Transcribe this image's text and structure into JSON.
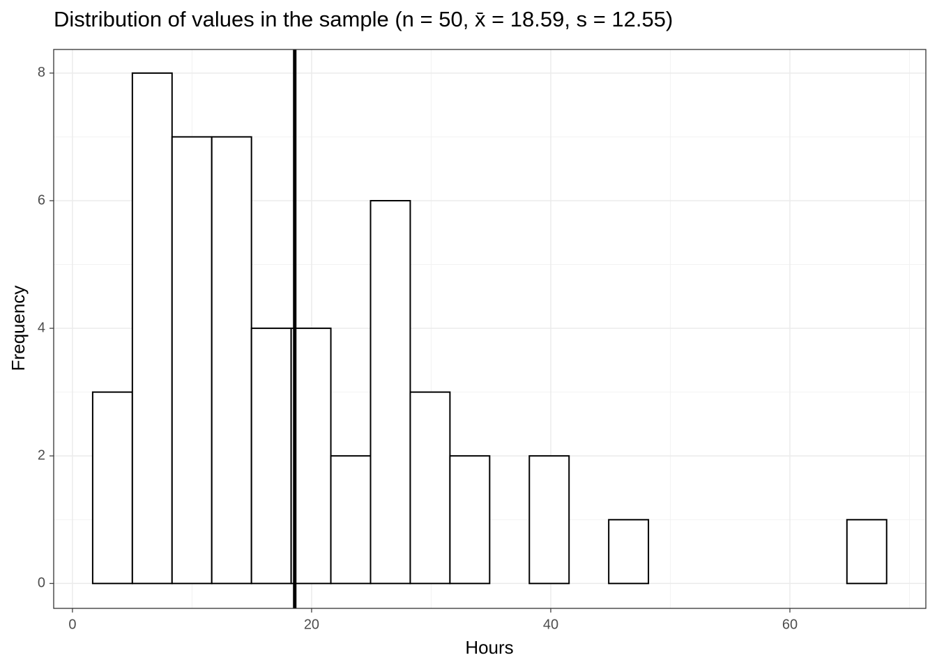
{
  "chart_data": {
    "type": "histogram",
    "title": "Distribution of values in the sample (n =  50, x̄ =  18.59, s = 12.55)",
    "x_label": "Hours",
    "y_label": "Frequency",
    "bins": [
      1.69,
      5.01,
      8.33,
      11.65,
      14.97,
      18.29,
      21.61,
      24.93,
      28.25,
      31.57,
      34.89,
      38.21,
      41.53,
      44.85,
      48.17,
      51.49,
      54.81,
      58.13,
      61.45,
      64.77,
      68.09
    ],
    "values": [
      3,
      8,
      7,
      7,
      4,
      4,
      2,
      6,
      3,
      2,
      0,
      2,
      0,
      1,
      0,
      0,
      0,
      0,
      0,
      1
    ],
    "color": "#ffffff",
    "edge_color": "#000000",
    "mean_line": 18.59,
    "mean_line_color": "#000000",
    "xlim": [
      -1.57,
      71.37
    ],
    "xticks": [
      0,
      20,
      40,
      60
    ],
    "ylim": [
      -0.39,
      8.37
    ],
    "yticks": [
      0,
      2,
      4,
      6,
      8
    ],
    "grid": true
  }
}
